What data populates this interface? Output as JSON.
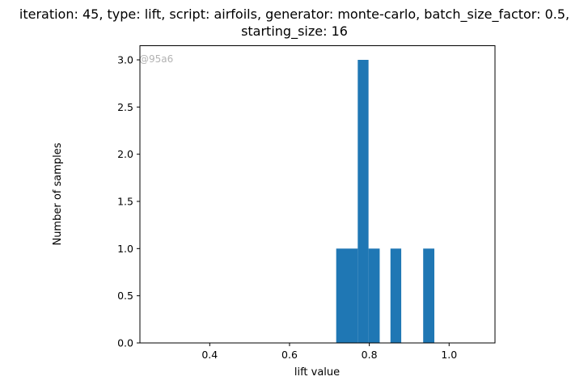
{
  "chart_data": {
    "type": "bar",
    "title_lines": [
      "iteration: 45, type: lift, script: airfoils, generator: monte-carlo, batch_size_factor: 0.5,",
      "starting_size: 16"
    ],
    "xlabel": "lift value",
    "ylabel": "Number of samples",
    "watermark": "@95a6",
    "xlim": [
      0.225,
      1.115
    ],
    "ylim": [
      0,
      3.15
    ],
    "xticks": [
      0.4,
      0.6,
      0.8,
      1.0
    ],
    "xtick_labels": [
      "0.4",
      "0.6",
      "0.8",
      "1.0"
    ],
    "yticks": [
      0,
      0.5,
      1,
      1.5,
      2,
      2.5,
      3
    ],
    "ytick_labels": [
      "0.0",
      "0.5",
      "1.0",
      "1.5",
      "2.0",
      "2.5",
      "3.0"
    ],
    "grid": false,
    "bar_color": "#1f77b4",
    "bins": [
      {
        "x0": 0.717,
        "x1": 0.744,
        "count": 1
      },
      {
        "x0": 0.744,
        "x1": 0.771,
        "count": 1
      },
      {
        "x0": 0.771,
        "x1": 0.798,
        "count": 3
      },
      {
        "x0": 0.798,
        "x1": 0.826,
        "count": 1
      },
      {
        "x0": 0.853,
        "x1": 0.88,
        "count": 1
      },
      {
        "x0": 0.935,
        "x1": 0.963,
        "count": 1
      }
    ]
  }
}
